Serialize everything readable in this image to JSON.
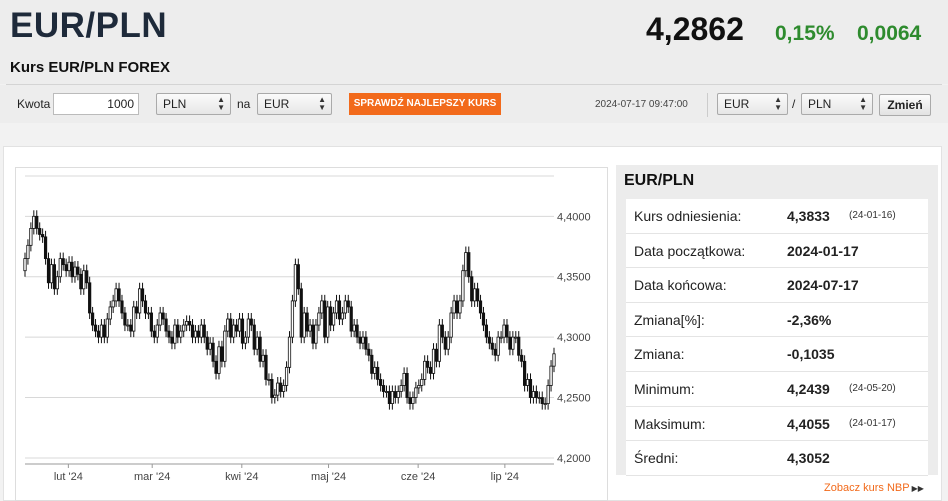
{
  "header": {
    "pair": "EUR/PLN",
    "subtitle": "Kurs EUR/PLN FOREX",
    "rate": "4,2862",
    "change_pct": "0,15%",
    "change_abs": "0,0064"
  },
  "converter": {
    "amount_label": "Kwota",
    "amount_value": "1000",
    "from_currency": "PLN",
    "to_label": "na",
    "to_currency": "EUR",
    "best_rate_button": "SPRAWDŹ NAJLEPSZY KURS",
    "timestamp": "2024-07-17 09:47:00",
    "pair_from": "EUR",
    "pair_separator": "/",
    "pair_to": "PLN",
    "change_button": "Zmień"
  },
  "colors": {
    "accent": "#f26a1b",
    "positive": "#2e8b2e",
    "title": "#1e2a3a"
  },
  "icons": {
    "select_arrow": "select-arrows-icon",
    "link_arrow": "double-triangle-right-icon"
  },
  "panel": {
    "title": "EUR/PLN",
    "rows": [
      {
        "label": "Kurs odniesienia:",
        "value": "4,3833",
        "note": "(24-01-16)"
      },
      {
        "label": "Data początkowa:",
        "value": "2024-01-17",
        "note": ""
      },
      {
        "label": "Data końcowa:",
        "value": "2024-07-17",
        "note": ""
      },
      {
        "label": "Zmiana[%]:",
        "value": "-2,36%",
        "note": ""
      },
      {
        "label": "Zmiana:",
        "value": "-0,1035",
        "note": ""
      },
      {
        "label": "Minimum:",
        "value": "4,2439",
        "note": "(24-05-20)"
      },
      {
        "label": "Maksimum:",
        "value": "4,4055",
        "note": "(24-01-17)"
      },
      {
        "label": "Średni:",
        "value": "4,3052",
        "note": ""
      }
    ]
  },
  "nbp_link": "Zobacz kurs NBP",
  "chart_data": {
    "type": "candlestick",
    "ylim": [
      4.195,
      4.44
    ],
    "y_ticks": [
      {
        "value": 4.4,
        "label": "4,4000"
      },
      {
        "value": 4.35,
        "label": "4,3500"
      },
      {
        "value": 4.3,
        "label": "4,3000"
      },
      {
        "value": 4.25,
        "label": "4,2500"
      },
      {
        "value": 4.2,
        "label": "4,2000"
      }
    ],
    "x_labels": [
      {
        "day": 15,
        "label": "lut '24"
      },
      {
        "day": 44,
        "label": "mar '24"
      },
      {
        "day": 75,
        "label": "kwi '24"
      },
      {
        "day": 105,
        "label": "maj '24"
      },
      {
        "day": 136,
        "label": "cze '24"
      },
      {
        "day": 166,
        "label": "lip '24"
      }
    ],
    "total_days": 183,
    "closes": [
      4.365,
      4.376,
      4.39,
      4.4,
      4.39,
      4.385,
      4.383,
      4.365,
      4.345,
      4.36,
      4.34,
      4.35,
      4.365,
      4.36,
      4.355,
      4.362,
      4.35,
      4.358,
      4.352,
      4.34,
      4.355,
      4.345,
      4.32,
      4.31,
      4.305,
      4.3,
      4.31,
      4.3,
      4.315,
      4.325,
      4.33,
      4.34,
      4.33,
      4.32,
      4.31,
      4.31,
      4.305,
      4.325,
      4.32,
      4.34,
      4.33,
      4.32,
      4.32,
      4.305,
      4.3,
      4.31,
      4.32,
      4.315,
      4.305,
      4.3,
      4.295,
      4.31,
      4.3,
      4.305,
      4.31,
      4.313,
      4.31,
      4.3,
      4.305,
      4.3,
      4.31,
      4.3,
      4.29,
      4.295,
      4.28,
      4.27,
      4.292,
      4.28,
      4.305,
      4.315,
      4.3,
      4.31,
      4.305,
      4.315,
      4.295,
      4.3,
      4.315,
      4.31,
      4.29,
      4.3,
      4.28,
      4.285,
      4.265,
      4.265,
      4.25,
      4.252,
      4.262,
      4.255,
      4.26,
      4.275,
      4.3,
      4.33,
      4.36,
      4.34,
      4.3,
      4.32,
      4.305,
      4.31,
      4.295,
      4.31,
      4.32,
      4.33,
      4.3,
      4.325,
      4.31,
      4.32,
      4.33,
      4.315,
      4.32,
      4.33,
      4.325,
      4.305,
      4.31,
      4.3,
      4.295,
      4.3,
      4.29,
      4.285,
      4.27,
      4.275,
      4.265,
      4.26,
      4.255,
      4.255,
      4.245,
      4.255,
      4.25,
      4.255,
      4.26,
      4.27,
      4.25,
      4.245,
      4.25,
      4.258,
      4.26,
      4.265,
      4.28,
      4.275,
      4.27,
      4.29,
      4.28,
      4.31,
      4.3,
      4.29,
      4.3,
      4.32,
      4.33,
      4.32,
      4.33,
      4.355,
      4.37,
      4.35,
      4.33,
      4.34,
      4.33,
      4.32,
      4.31,
      4.3,
      4.295,
      4.29,
      4.285,
      4.3,
      4.3,
      4.31,
      4.3,
      4.29,
      4.3,
      4.3,
      4.285,
      4.28,
      4.26,
      4.265,
      4.25,
      4.255,
      4.25,
      4.25,
      4.245,
      4.245,
      4.26,
      4.276,
      4.2862
    ]
  }
}
